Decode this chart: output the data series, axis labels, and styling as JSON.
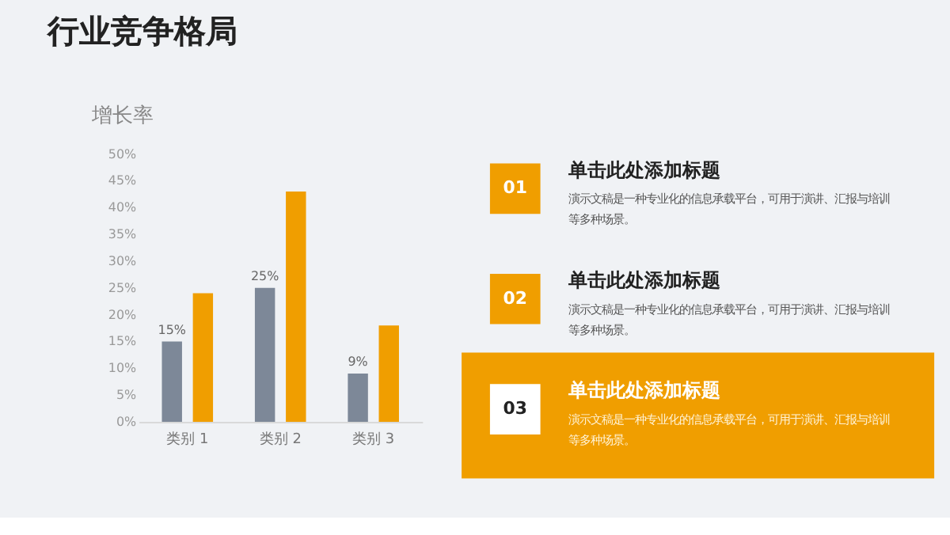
{
  "chart_data": [
    {
      "type": "bar",
      "title": "行业竞争格局",
      "ylabel": "增长率",
      "categories": [
        "类别 1",
        "类别 2",
        "类别 3"
      ],
      "series": [
        {
          "color": "#7d8898",
          "values": [
            15,
            25,
            9
          ],
          "value_labels": [
            "15%",
            "25%",
            "9%"
          ]
        },
        {
          "color": "#f09e00",
          "values": [
            24,
            43,
            18
          ]
        }
      ],
      "ylim": [
        0,
        50
      ],
      "yticks": [
        {
          "value": 0,
          "label": "0%"
        },
        {
          "value": 5,
          "label": "5%"
        },
        {
          "value": 10,
          "label": "10%"
        },
        {
          "value": 15,
          "label": "15%"
        },
        {
          "value": 20,
          "label": "20%"
        },
        {
          "value": 25,
          "label": "25%"
        },
        {
          "value": 30,
          "label": "30%"
        },
        {
          "value": 35,
          "label": "35%"
        },
        {
          "value": 40,
          "label": "40%"
        },
        {
          "value": 45,
          "label": "45%"
        },
        {
          "value": 50,
          "label": "50%"
        }
      ],
      "grid": false,
      "legend": false
    },
    {
      "type": "other",
      "annotations": [
        "01",
        "单击此处添加标题",
        "演示文稿是一种专业化的信息承载平台，可用于演讲、汇报与培训等多种场景。",
        "02",
        "单击此处添加标题",
        "演示文稿是一种专业化的信息承载平台，可用于演讲、汇报与培训等多种场景。",
        "03",
        "单击此处添加标题",
        "演示文稿是一种专业化的信息承载平台，可用于演讲、汇报与培训等多种场景。"
      ]
    }
  ]
}
